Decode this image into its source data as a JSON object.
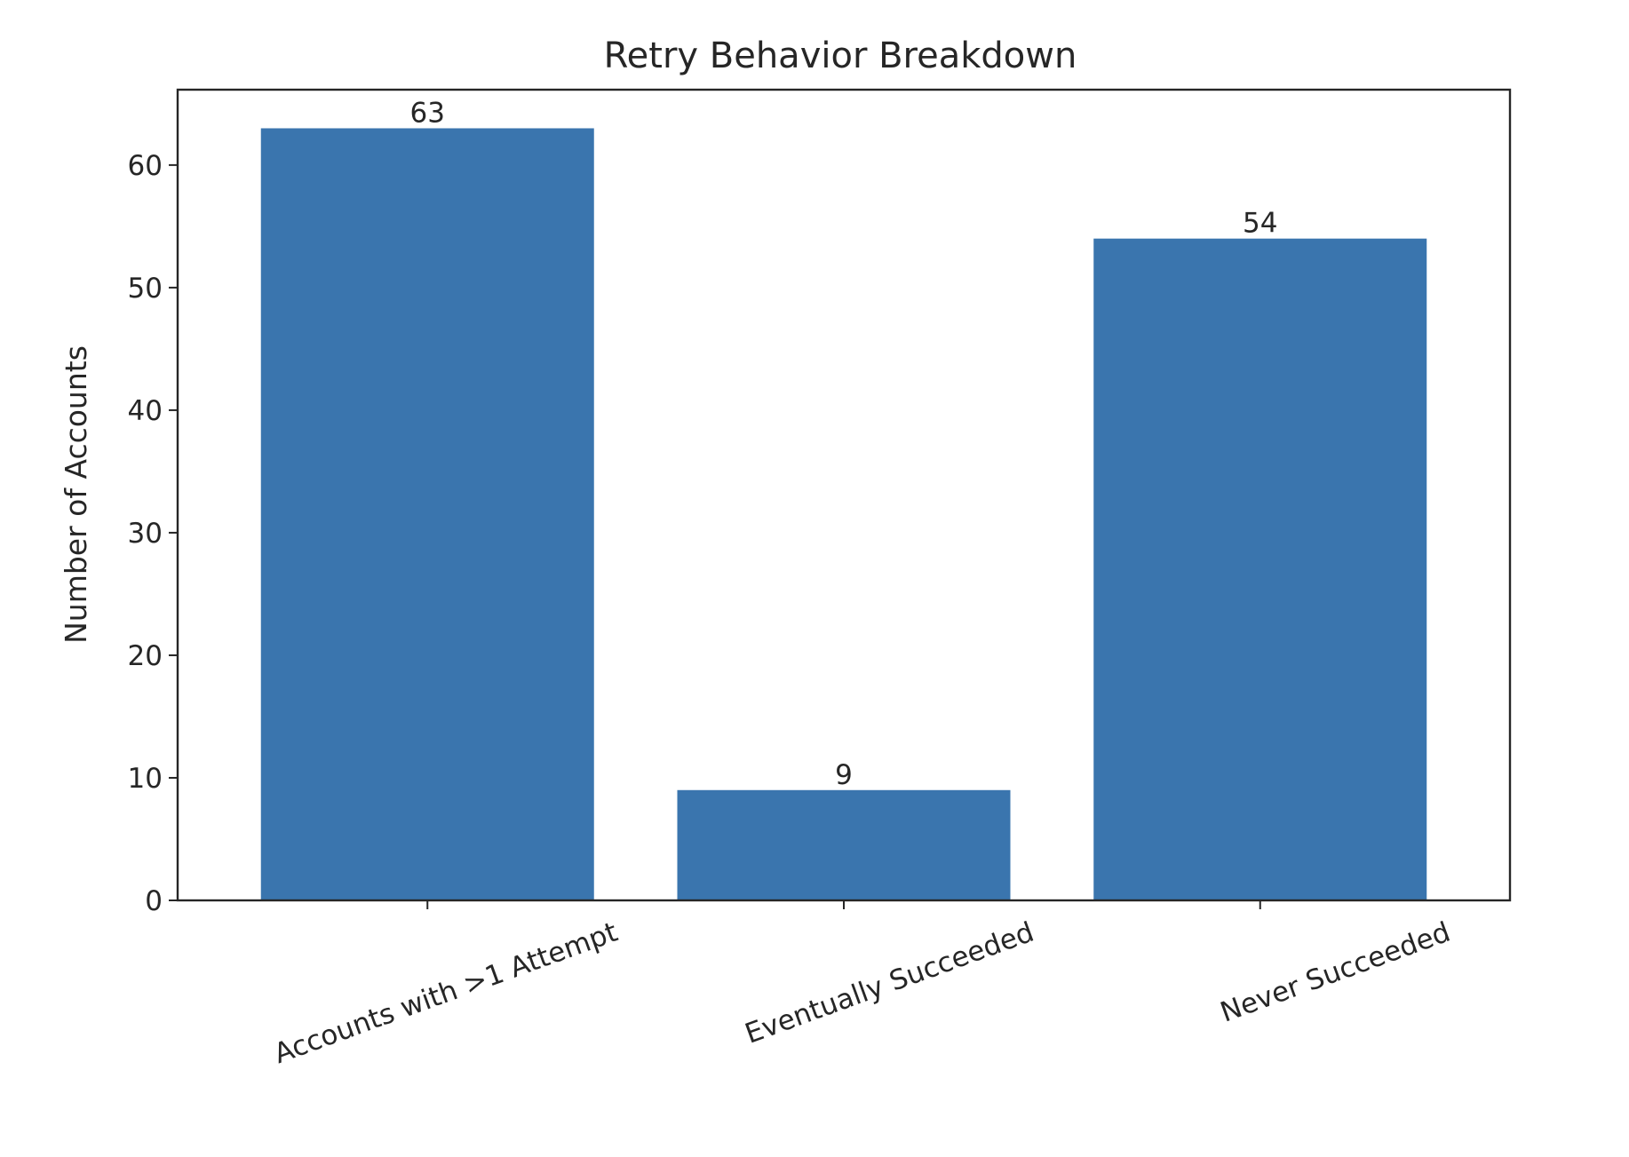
{
  "chart_data": {
    "type": "bar",
    "title": "Retry Behavior Breakdown",
    "xlabel": "",
    "ylabel": "Number of Accounts",
    "categories": [
      "Accounts with >1 Attempt",
      "Eventually Succeeded",
      "Never Succeeded"
    ],
    "values": [
      63,
      9,
      54
    ],
    "data_labels": [
      "63",
      "9",
      "54"
    ],
    "ylim": [
      0,
      66.15
    ],
    "yticks": [
      0,
      10,
      20,
      30,
      40,
      50,
      60
    ],
    "x_tick_label_rotation_deg": -20,
    "bar_color": "#3a75ae",
    "grid": false,
    "legend": "none"
  }
}
